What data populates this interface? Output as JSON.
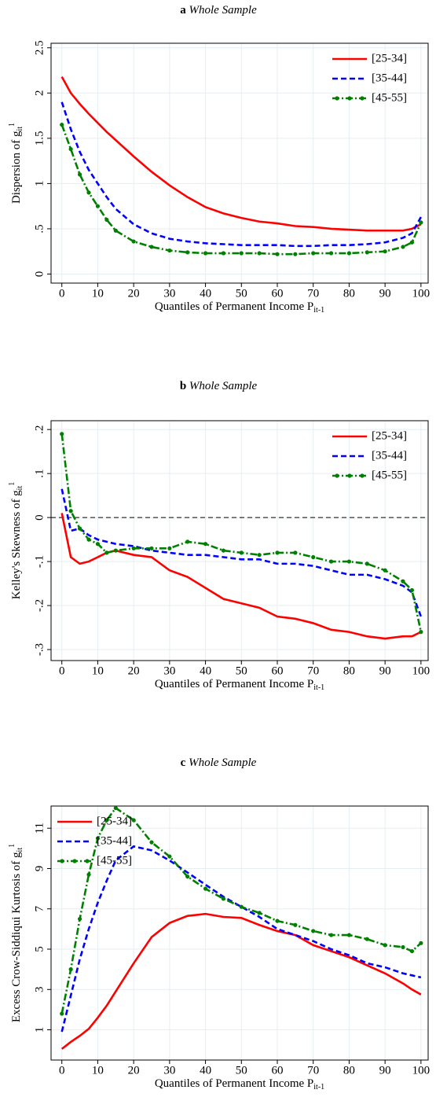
{
  "chart_data": [
    {
      "type": "line",
      "label": "a",
      "title": "Whole Sample",
      "x_label": "Quantiles of Permanent Income P",
      "x_label_sub": "it-1",
      "y_label": "Dispersion of g",
      "y_label_sub": "it",
      "y_label_sup": "1",
      "x": [
        0,
        2.5,
        5,
        7.5,
        10,
        12.5,
        15,
        20,
        25,
        30,
        35,
        40,
        45,
        50,
        55,
        60,
        65,
        70,
        75,
        80,
        85,
        90,
        95,
        97.5,
        100
      ],
      "series": [
        {
          "name": "[25-34]",
          "color": "#ff0000",
          "style": "solid",
          "marker": false,
          "values": [
            2.18,
            2.0,
            1.88,
            1.77,
            1.67,
            1.57,
            1.48,
            1.3,
            1.13,
            0.98,
            0.85,
            0.74,
            0.67,
            0.62,
            0.58,
            0.56,
            0.53,
            0.52,
            0.5,
            0.49,
            0.48,
            0.48,
            0.48,
            0.5,
            0.55
          ]
        },
        {
          "name": "[35-44]",
          "color": "#0000ff",
          "style": "dash",
          "marker": false,
          "values": [
            1.9,
            1.6,
            1.35,
            1.15,
            1.0,
            0.85,
            0.72,
            0.55,
            0.45,
            0.39,
            0.36,
            0.34,
            0.33,
            0.32,
            0.32,
            0.32,
            0.31,
            0.31,
            0.32,
            0.32,
            0.33,
            0.35,
            0.4,
            0.45,
            0.63
          ]
        },
        {
          "name": "[45-55]",
          "color": "#008000",
          "style": "dashdot",
          "marker": true,
          "values": [
            1.65,
            1.38,
            1.1,
            0.9,
            0.75,
            0.6,
            0.48,
            0.36,
            0.3,
            0.26,
            0.24,
            0.23,
            0.23,
            0.23,
            0.23,
            0.22,
            0.22,
            0.23,
            0.23,
            0.23,
            0.24,
            0.25,
            0.3,
            0.35,
            0.57
          ]
        }
      ],
      "xlim": [
        -3,
        102
      ],
      "xticks": [
        0,
        10,
        20,
        30,
        40,
        50,
        60,
        70,
        80,
        90,
        100
      ],
      "ylim": [
        -0.1,
        2.55
      ],
      "yticks": [
        0,
        {
          "value": 0.5,
          "label": ".5"
        },
        1,
        1.5,
        2,
        2.5
      ],
      "grid": true,
      "legend": "upper right"
    },
    {
      "type": "line",
      "label": "b",
      "title": "Whole Sample",
      "x_label": "Quantiles of Permanent Income P",
      "x_label_sub": "it-1",
      "y_label": "Kelley's Skewness of g",
      "y_label_sub": "it",
      "y_label_sup": "1",
      "x": [
        0,
        2.5,
        5,
        7.5,
        10,
        12.5,
        15,
        20,
        25,
        30,
        35,
        40,
        45,
        50,
        55,
        60,
        65,
        70,
        75,
        80,
        85,
        90,
        95,
        97.5,
        100
      ],
      "series": [
        {
          "name": "[25-34]",
          "color": "#ff0000",
          "style": "solid",
          "marker": false,
          "values": [
            0.01,
            -0.09,
            -0.105,
            -0.1,
            -0.09,
            -0.08,
            -0.075,
            -0.085,
            -0.09,
            -0.12,
            -0.135,
            -0.16,
            -0.185,
            -0.195,
            -0.205,
            -0.225,
            -0.23,
            -0.24,
            -0.255,
            -0.26,
            -0.27,
            -0.275,
            -0.27,
            -0.27,
            -0.26
          ]
        },
        {
          "name": "[35-44]",
          "color": "#0000ff",
          "style": "dash",
          "marker": false,
          "values": [
            0.065,
            -0.03,
            -0.025,
            -0.04,
            -0.05,
            -0.055,
            -0.06,
            -0.065,
            -0.075,
            -0.08,
            -0.085,
            -0.085,
            -0.09,
            -0.095,
            -0.095,
            -0.105,
            -0.105,
            -0.11,
            -0.12,
            -0.13,
            -0.13,
            -0.14,
            -0.155,
            -0.17,
            -0.225
          ]
        },
        {
          "name": "[45-55]",
          "color": "#008000",
          "style": "dashdot",
          "marker": true,
          "values": [
            0.19,
            0.015,
            -0.025,
            -0.05,
            -0.06,
            -0.08,
            -0.075,
            -0.07,
            -0.07,
            -0.07,
            -0.055,
            -0.06,
            -0.075,
            -0.08,
            -0.085,
            -0.08,
            -0.08,
            -0.09,
            -0.1,
            -0.1,
            -0.105,
            -0.12,
            -0.145,
            -0.165,
            -0.26
          ]
        }
      ],
      "xlim": [
        -3,
        102
      ],
      "xticks": [
        0,
        10,
        20,
        30,
        40,
        50,
        60,
        70,
        80,
        90,
        100
      ],
      "ylim": [
        -0.325,
        0.22
      ],
      "yticks": [
        {
          "value": 0.2,
          "label": ".2"
        },
        {
          "value": 0.1,
          "label": ".1"
        },
        0,
        {
          "value": -0.1,
          "label": "-.1"
        },
        {
          "value": -0.2,
          "label": "-.2"
        },
        {
          "value": -0.3,
          "label": "-.3"
        }
      ],
      "reference_line": 0,
      "grid": true,
      "legend": "upper right"
    },
    {
      "type": "line",
      "label": "c",
      "title": "Whole Sample",
      "x_label": "Quantiles of Permanent Income P",
      "x_label_sub": "it-1",
      "y_label": "Excess Crow-Siddiqui Kurtosis of g",
      "y_label_sub": "it",
      "y_label_sup": "1",
      "x": [
        0,
        2.5,
        5,
        7.5,
        10,
        12.5,
        15,
        20,
        25,
        30,
        35,
        40,
        45,
        50,
        55,
        60,
        65,
        70,
        75,
        80,
        85,
        90,
        95,
        97.5,
        100
      ],
      "series": [
        {
          "name": "[25-34]",
          "color": "#ff0000",
          "style": "solid",
          "marker": false,
          "values": [
            0.05,
            0.4,
            0.7,
            1.05,
            1.6,
            2.2,
            2.9,
            4.3,
            5.6,
            6.3,
            6.65,
            6.75,
            6.6,
            6.55,
            6.2,
            5.9,
            5.7,
            5.2,
            4.9,
            4.6,
            4.2,
            3.8,
            3.3,
            3.0,
            2.75
          ]
        },
        {
          "name": "[35-44]",
          "color": "#0000ff",
          "style": "dash",
          "marker": false,
          "values": [
            0.9,
            2.7,
            4.5,
            6.0,
            7.3,
            8.4,
            9.4,
            10.1,
            9.9,
            9.4,
            8.8,
            8.2,
            7.6,
            7.1,
            6.6,
            6.0,
            5.7,
            5.4,
            5.0,
            4.7,
            4.3,
            4.1,
            3.8,
            3.7,
            3.6
          ]
        },
        {
          "name": "[45-55]",
          "color": "#008000",
          "style": "dashdot",
          "marker": true,
          "values": [
            1.8,
            4.0,
            6.5,
            8.7,
            10.5,
            11.4,
            12.0,
            11.4,
            10.3,
            9.6,
            8.6,
            8.0,
            7.5,
            7.1,
            6.8,
            6.4,
            6.2,
            5.9,
            5.7,
            5.7,
            5.5,
            5.2,
            5.1,
            4.9,
            5.3
          ]
        }
      ],
      "xlim": [
        -3,
        102
      ],
      "xticks": [
        0,
        10,
        20,
        30,
        40,
        50,
        60,
        70,
        80,
        90,
        100
      ],
      "ylim": [
        -0.5,
        12.1
      ],
      "yticks": [
        1,
        3,
        5,
        7,
        9,
        11
      ],
      "grid": true,
      "legend": "upper left"
    }
  ]
}
